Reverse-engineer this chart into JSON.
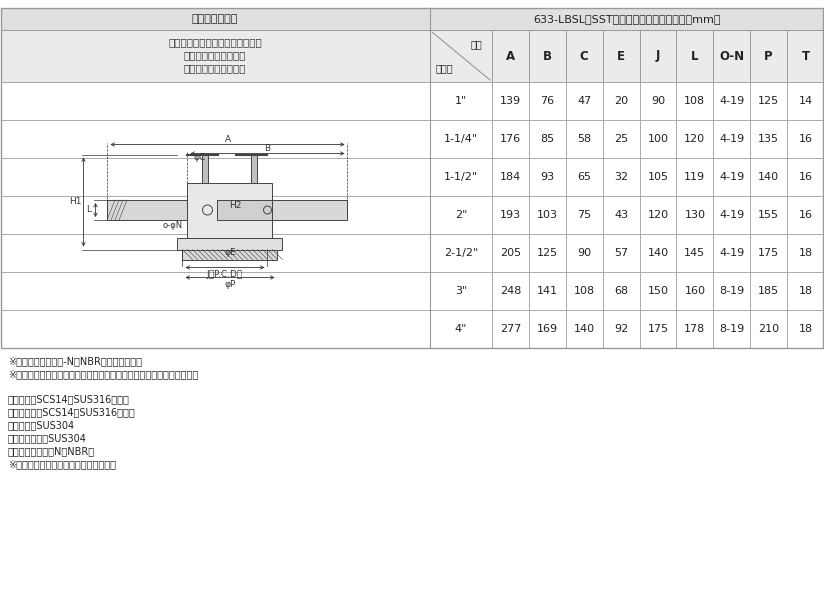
{
  "title_left": "カムアーム継手",
  "title_right": "633-LBSL　SST　サイズ別寸法表（単位：mm）",
  "subtitle_lines": [
    "カムロック　ツインロックタイプ",
    "カプラー　フランジ付",
    "ステンレススチール製"
  ],
  "col_headers": [
    "A",
    "B",
    "C",
    "E",
    "J",
    "L",
    "O-N",
    "P",
    "T"
  ],
  "header_size_label": "位置",
  "header_size_label2": "サイズ",
  "rows": [
    {
      "size": "1\"",
      "A": "139",
      "B": "76",
      "C": "47",
      "E": "20",
      "J": "90",
      "L": "108",
      "ON": "4-19",
      "P": "125",
      "T": "14"
    },
    {
      "size": "1-1/4\"",
      "A": "176",
      "B": "85",
      "C": "58",
      "E": "25",
      "J": "100",
      "L": "120",
      "ON": "4-19",
      "P": "135",
      "T": "16"
    },
    {
      "size": "1-1/2\"",
      "A": "184",
      "B": "93",
      "C": "65",
      "E": "32",
      "J": "105",
      "L": "119",
      "ON": "4-19",
      "P": "140",
      "T": "16"
    },
    {
      "size": "2\"",
      "A": "193",
      "B": "103",
      "C": "75",
      "E": "43",
      "J": "120",
      "L": "130",
      "ON": "4-19",
      "P": "155",
      "T": "16"
    },
    {
      "size": "2-1/2\"",
      "A": "205",
      "B": "125",
      "C": "90",
      "E": "57",
      "J": "140",
      "L": "145",
      "ON": "4-19",
      "P": "175",
      "T": "18"
    },
    {
      "size": "3\"",
      "A": "248",
      "B": "141",
      "C": "108",
      "E": "68",
      "J": "150",
      "L": "160",
      "ON": "8-19",
      "P": "185",
      "T": "18"
    },
    {
      "size": "4\"",
      "A": "277",
      "B": "169",
      "C": "140",
      "E": "92",
      "J": "175",
      "L": "178",
      "ON": "8-19",
      "P": "210",
      "T": "18"
    }
  ],
  "notes": [
    "※ガスケットはブナ-N（NBR）を標準装備。",
    "※在庫僅少品ですので在庫及び納期確認についてはお問合せください。"
  ],
  "materials": [
    "継手本体：SCS14（SUS316相当）",
    "カムアーム：SCS14（SUS316相当）",
    "固定部品：SUS304",
    "ピン・リング：SUS304",
    "ガスケット：ブナN（NBR）",
    "※ガスケットは流体により選定できます"
  ],
  "bg_header": "#e0e0e0",
  "bg_subheader": "#ebebeb",
  "bg_white": "#ffffff",
  "border_color": "#999999",
  "text_color": "#222222",
  "subtitle_color": "#333333"
}
